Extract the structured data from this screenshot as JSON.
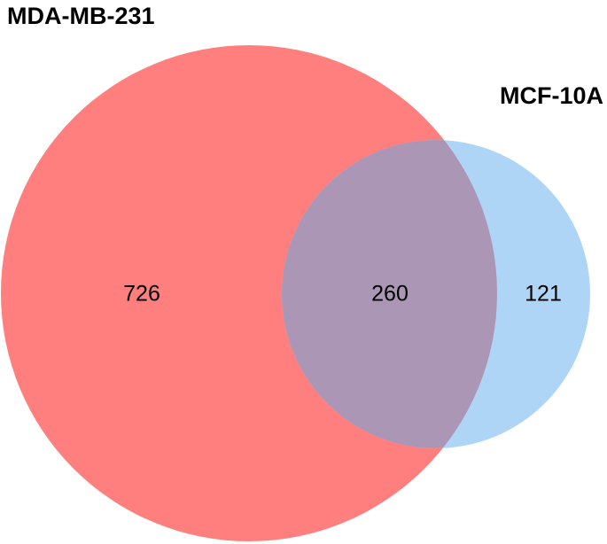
{
  "chart_data": {
    "type": "venn",
    "sets": [
      {
        "name": "MDA-MB-231",
        "color": "#ff7f7f"
      },
      {
        "name": "MCF-10A",
        "color": "#aed5f5"
      }
    ],
    "overlap_color": "#ab97b5",
    "values": [
      726,
      260,
      121
    ]
  }
}
